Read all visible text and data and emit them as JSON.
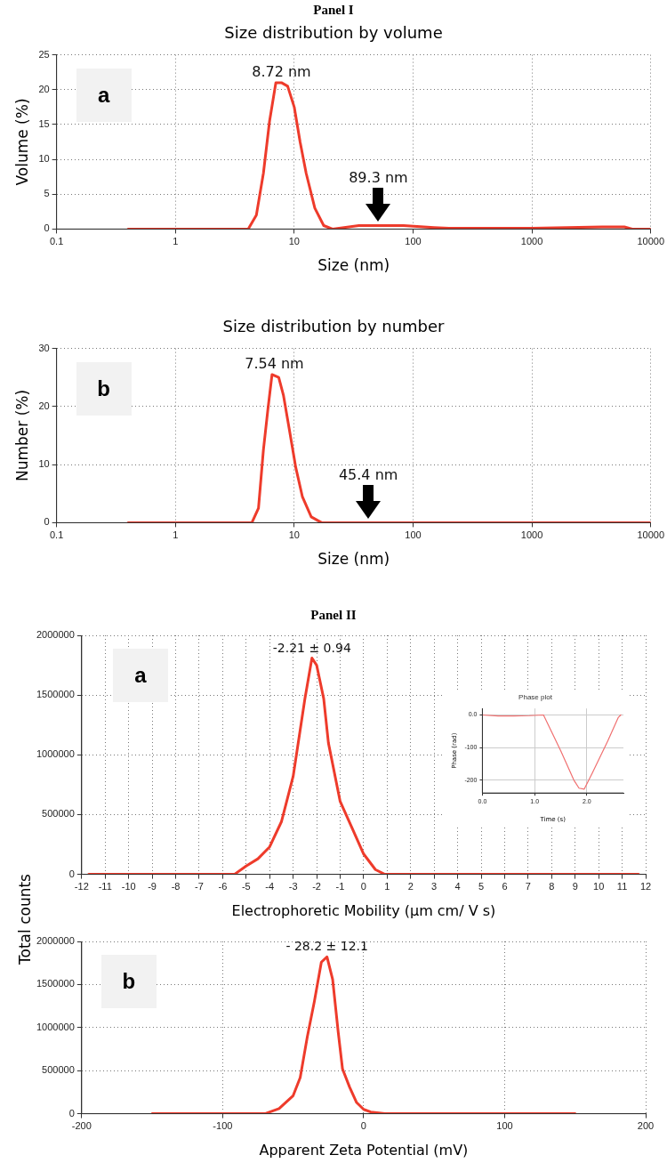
{
  "chart_data": [
    {
      "type": "line",
      "title": "Panel I",
      "subtitle": "Size distribution by volume",
      "xlabel": "Size (nm)",
      "ylabel": "Volume (%)",
      "log": "x",
      "grid": true,
      "x": [
        0.4,
        4.1,
        4.8,
        5.5,
        6.2,
        7.0,
        7.8,
        8.8,
        10,
        11.2,
        12.6,
        14.9,
        17.7,
        21,
        35,
        51,
        83,
        150,
        200,
        1000,
        3900,
        6000,
        7000,
        10000
      ],
      "values": [
        0,
        0,
        2,
        8,
        15.5,
        21,
        21,
        20.5,
        17.5,
        12.5,
        8,
        3,
        0.5,
        0,
        0.5,
        0.5,
        0.5,
        0.2,
        0.1,
        0.1,
        0.3,
        0.3,
        0,
        0
      ],
      "color": "#ee3b2b",
      "xlim": [
        0.1,
        10000
      ],
      "xticks": [
        0.1,
        1,
        10,
        100,
        1000,
        10000
      ],
      "ylim": [
        0,
        25
      ],
      "yticks": [
        0,
        5,
        10,
        15,
        20,
        25
      ],
      "annotations": [
        "a",
        {
          "text": "8.72 nm",
          "x": 7.8,
          "y": 21
        },
        {
          "text": "89.3 nm",
          "x": 51,
          "y": 0.5
        }
      ]
    },
    {
      "type": "line",
      "title": "Size distribution by number",
      "xlabel": "Size (nm)",
      "ylabel": "Number (%)",
      "log": "x",
      "grid": true,
      "x": [
        0.4,
        4.4,
        5.0,
        5.5,
        6.0,
        6.5,
        7.4,
        8.1,
        9.1,
        10.3,
        11.7,
        13.9,
        17,
        10000
      ],
      "values": [
        0,
        0,
        2.5,
        12.5,
        19.5,
        25.5,
        25,
        22,
        16,
        9.5,
        4.5,
        1,
        0,
        0
      ],
      "color": "#ee3b2b",
      "xlim": [
        0.1,
        10000
      ],
      "xticks": [
        0.1,
        1,
        10,
        100,
        1000,
        10000
      ],
      "ylim": [
        0,
        30
      ],
      "yticks": [
        0,
        10,
        20,
        30
      ],
      "annotations": [
        "b",
        {
          "text": "7.54 nm",
          "x": 6.8,
          "y": 25.5
        },
        {
          "text": "45.4 nm",
          "x": 42,
          "y": 0
        }
      ]
    },
    {
      "type": "line",
      "title": "Panel II",
      "xlabel": "Electrophoretic Mobility (µm cm/ V s)",
      "ylabel": "Total counts",
      "grid": true,
      "x": [
        -11.7,
        -5.5,
        -5,
        -4.5,
        -4,
        -3.5,
        -3,
        -2.5,
        -2.2,
        -2,
        -1.7,
        -1.5,
        -1,
        -0.5,
        0,
        0.5,
        0.9,
        11.7
      ],
      "values": [
        0,
        0,
        70000,
        130000,
        230000,
        440000,
        820000,
        1470000,
        1810000,
        1750000,
        1470000,
        1100000,
        610000,
        390000,
        170000,
        40000,
        0,
        0
      ],
      "color": "#ee3b2b",
      "xlim": [
        -12,
        12
      ],
      "xticks": [
        -12,
        -11,
        -10,
        -9,
        -8,
        -7,
        -6,
        -5,
        -4,
        -3,
        -2,
        -1,
        0,
        1,
        2,
        3,
        4,
        5,
        6,
        7,
        8,
        9,
        10,
        11,
        12
      ],
      "ylim": [
        0,
        2000000
      ],
      "yticks": [
        0,
        500000,
        1000000,
        1500000,
        2000000
      ],
      "annotations": [
        "a",
        {
          "text": "-2.21 ± 0.94",
          "x": -2.2,
          "y": 1810000
        }
      ]
    },
    {
      "type": "line",
      "title": "Phase plot",
      "xlabel": "Time (s)",
      "ylabel": "Phase (rad)",
      "grid": true,
      "x": [
        0,
        0.3,
        0.6,
        0.9,
        1.17,
        1.5,
        1.75,
        1.85,
        1.95,
        2.1,
        2.4,
        2.6,
        2.65
      ],
      "values": [
        0,
        -3,
        -3,
        -2,
        0,
        -110,
        -200,
        -225,
        -228,
        -180,
        -80,
        -8,
        0
      ],
      "color": "#f07070",
      "xlim": [
        0,
        2.7
      ],
      "xticks": [
        {
          "value": 0,
          "label": "0.0"
        },
        {
          "value": 1,
          "label": "1.0"
        },
        {
          "value": 2,
          "label": "2.0"
        }
      ],
      "ylim": [
        -240,
        20
      ],
      "yticks": [
        {
          "value": 0,
          "label": "0.0"
        },
        -100,
        -200
      ]
    },
    {
      "type": "line",
      "xlabel": "Apparent Zeta Potential (mV)",
      "grid": true,
      "x": [
        -150,
        -70,
        -60,
        -50,
        -45,
        -40,
        -35,
        -30,
        -26,
        -22,
        -18,
        -15,
        -10,
        -5,
        0,
        5,
        15,
        150
      ],
      "values": [
        0,
        0,
        60000,
        210000,
        420000,
        890000,
        1300000,
        1760000,
        1820000,
        1560000,
        940000,
        520000,
        310000,
        130000,
        50000,
        20000,
        0,
        0
      ],
      "color": "#ee3b2b",
      "xlim": [
        -200,
        200
      ],
      "xticks": [
        -200,
        -100,
        0,
        100,
        200
      ],
      "ylim": [
        0,
        2000000
      ],
      "yticks": [
        0,
        500000,
        1000000,
        1500000,
        2000000
      ],
      "annotations": [
        "b",
        {
          "text": "- 28.2 ± 12.1",
          "x": -26,
          "y": 1820000
        }
      ]
    }
  ]
}
